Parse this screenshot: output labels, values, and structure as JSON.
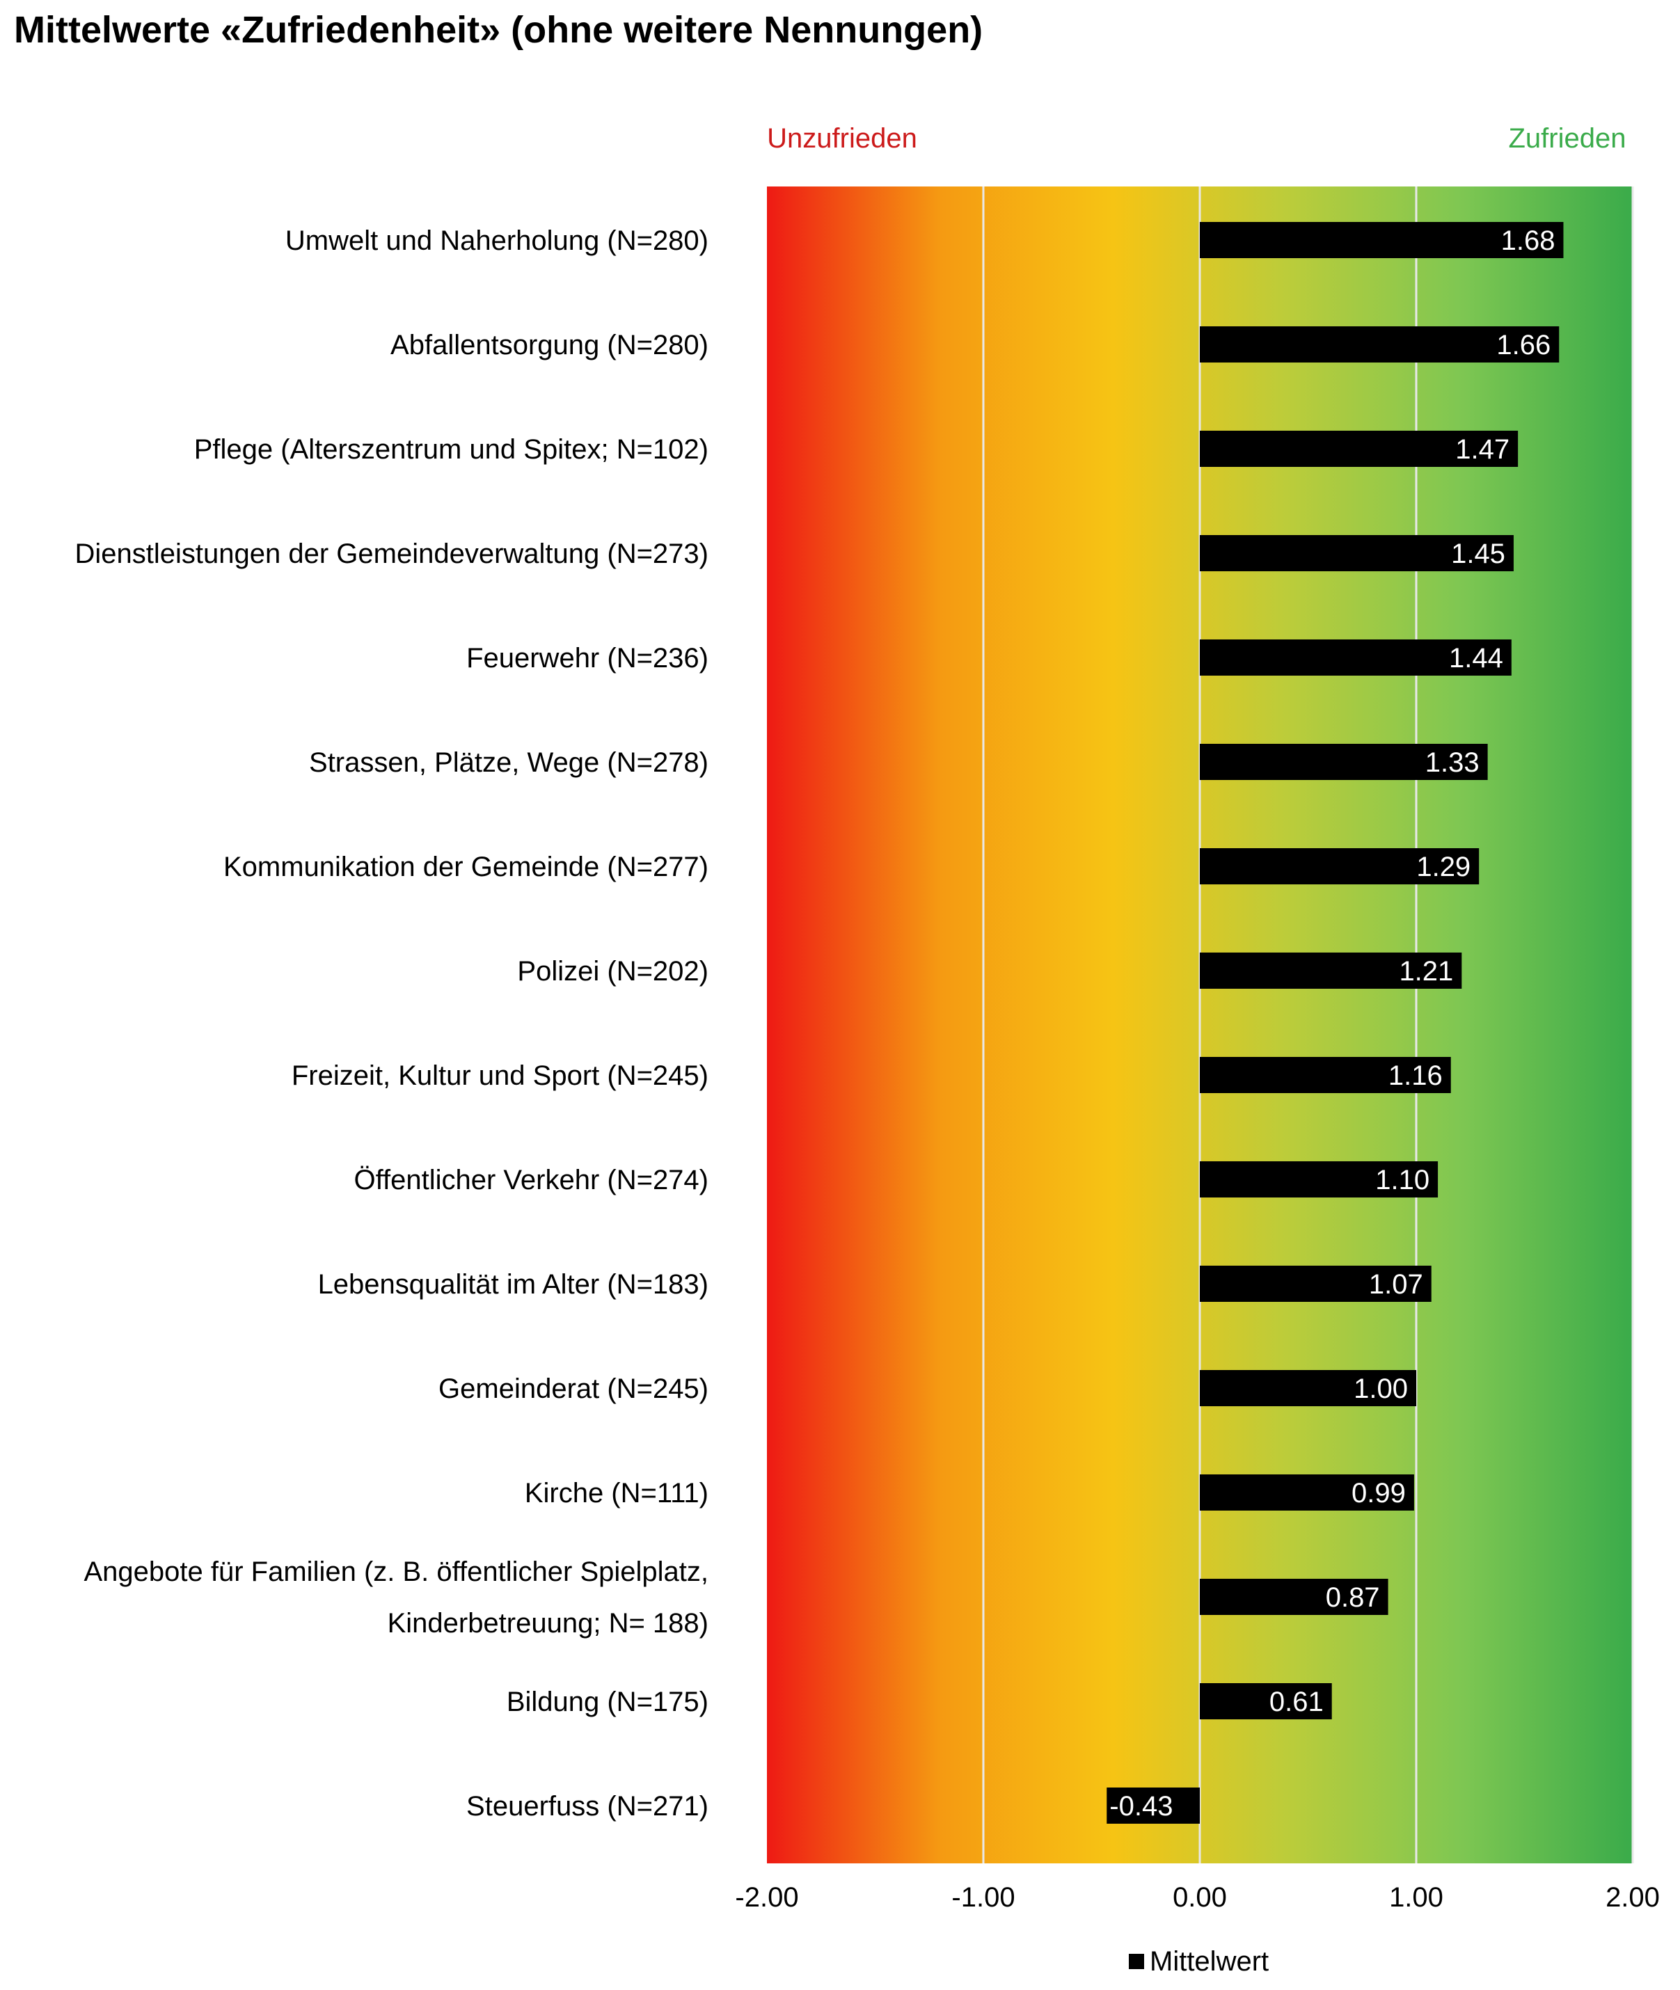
{
  "chart_data": {
    "type": "bar",
    "orientation": "horizontal",
    "title": "Mittelwerte «Zufriedenheit» (ohne weitere Nennungen)",
    "pole_left": "Unzufrieden",
    "pole_right": "Zufrieden",
    "categories": [
      "Umwelt und Naherholung (N=280)",
      "Abfallentsorgung (N=280)",
      "Pflege (Alterszentrum und Spitex; N=102)",
      "Dienstleistungen der Gemeindeverwaltung (N=273)",
      "Feuerwehr (N=236)",
      "Strassen, Plätze, Wege (N=278)",
      "Kommunikation der Gemeinde (N=277)",
      "Polizei (N=202)",
      "Freizeit, Kultur und Sport (N=245)",
      "Öffentlicher Verkehr (N=274)",
      "Lebensqualität im Alter (N=183)",
      "Gemeinderat (N=245)",
      "Kirche (N=111)",
      "Angebote für Familien (z. B. öffentlicher Spielplatz,\nKinderbetreuung; N= 188)",
      "Bildung (N=175)",
      "Steuerfuss (N=271)"
    ],
    "series": [
      {
        "name": "Mittelwert",
        "values": [
          1.68,
          1.66,
          1.47,
          1.45,
          1.44,
          1.33,
          1.29,
          1.21,
          1.16,
          1.1,
          1.07,
          1.0,
          0.99,
          0.87,
          0.61,
          -0.43
        ],
        "value_labels": [
          "1.68",
          "1.66",
          "1.47",
          "1.45",
          "1.44",
          "1.33",
          "1.29",
          "1.21",
          "1.16",
          "1.10",
          "1.07",
          "1.00",
          "0.99",
          "0.87",
          "0.61",
          "-0.43"
        ]
      }
    ],
    "xlim": [
      -2,
      2
    ],
    "xticks": [
      -2,
      -1,
      0,
      1,
      2
    ],
    "xtick_labels": [
      "-2.00",
      "-1.00",
      "0.00",
      "1.00",
      "2.00"
    ],
    "grid": true,
    "legend": "bottom",
    "colors": {
      "bar": "#000000",
      "pole_left": "#cc1a1a",
      "pole_right": "#3aab4a",
      "gradient": [
        "#ee1a14",
        "#f59a12",
        "#f6c414",
        "#bccc3a",
        "#7fc752",
        "#3aab4a"
      ]
    }
  }
}
